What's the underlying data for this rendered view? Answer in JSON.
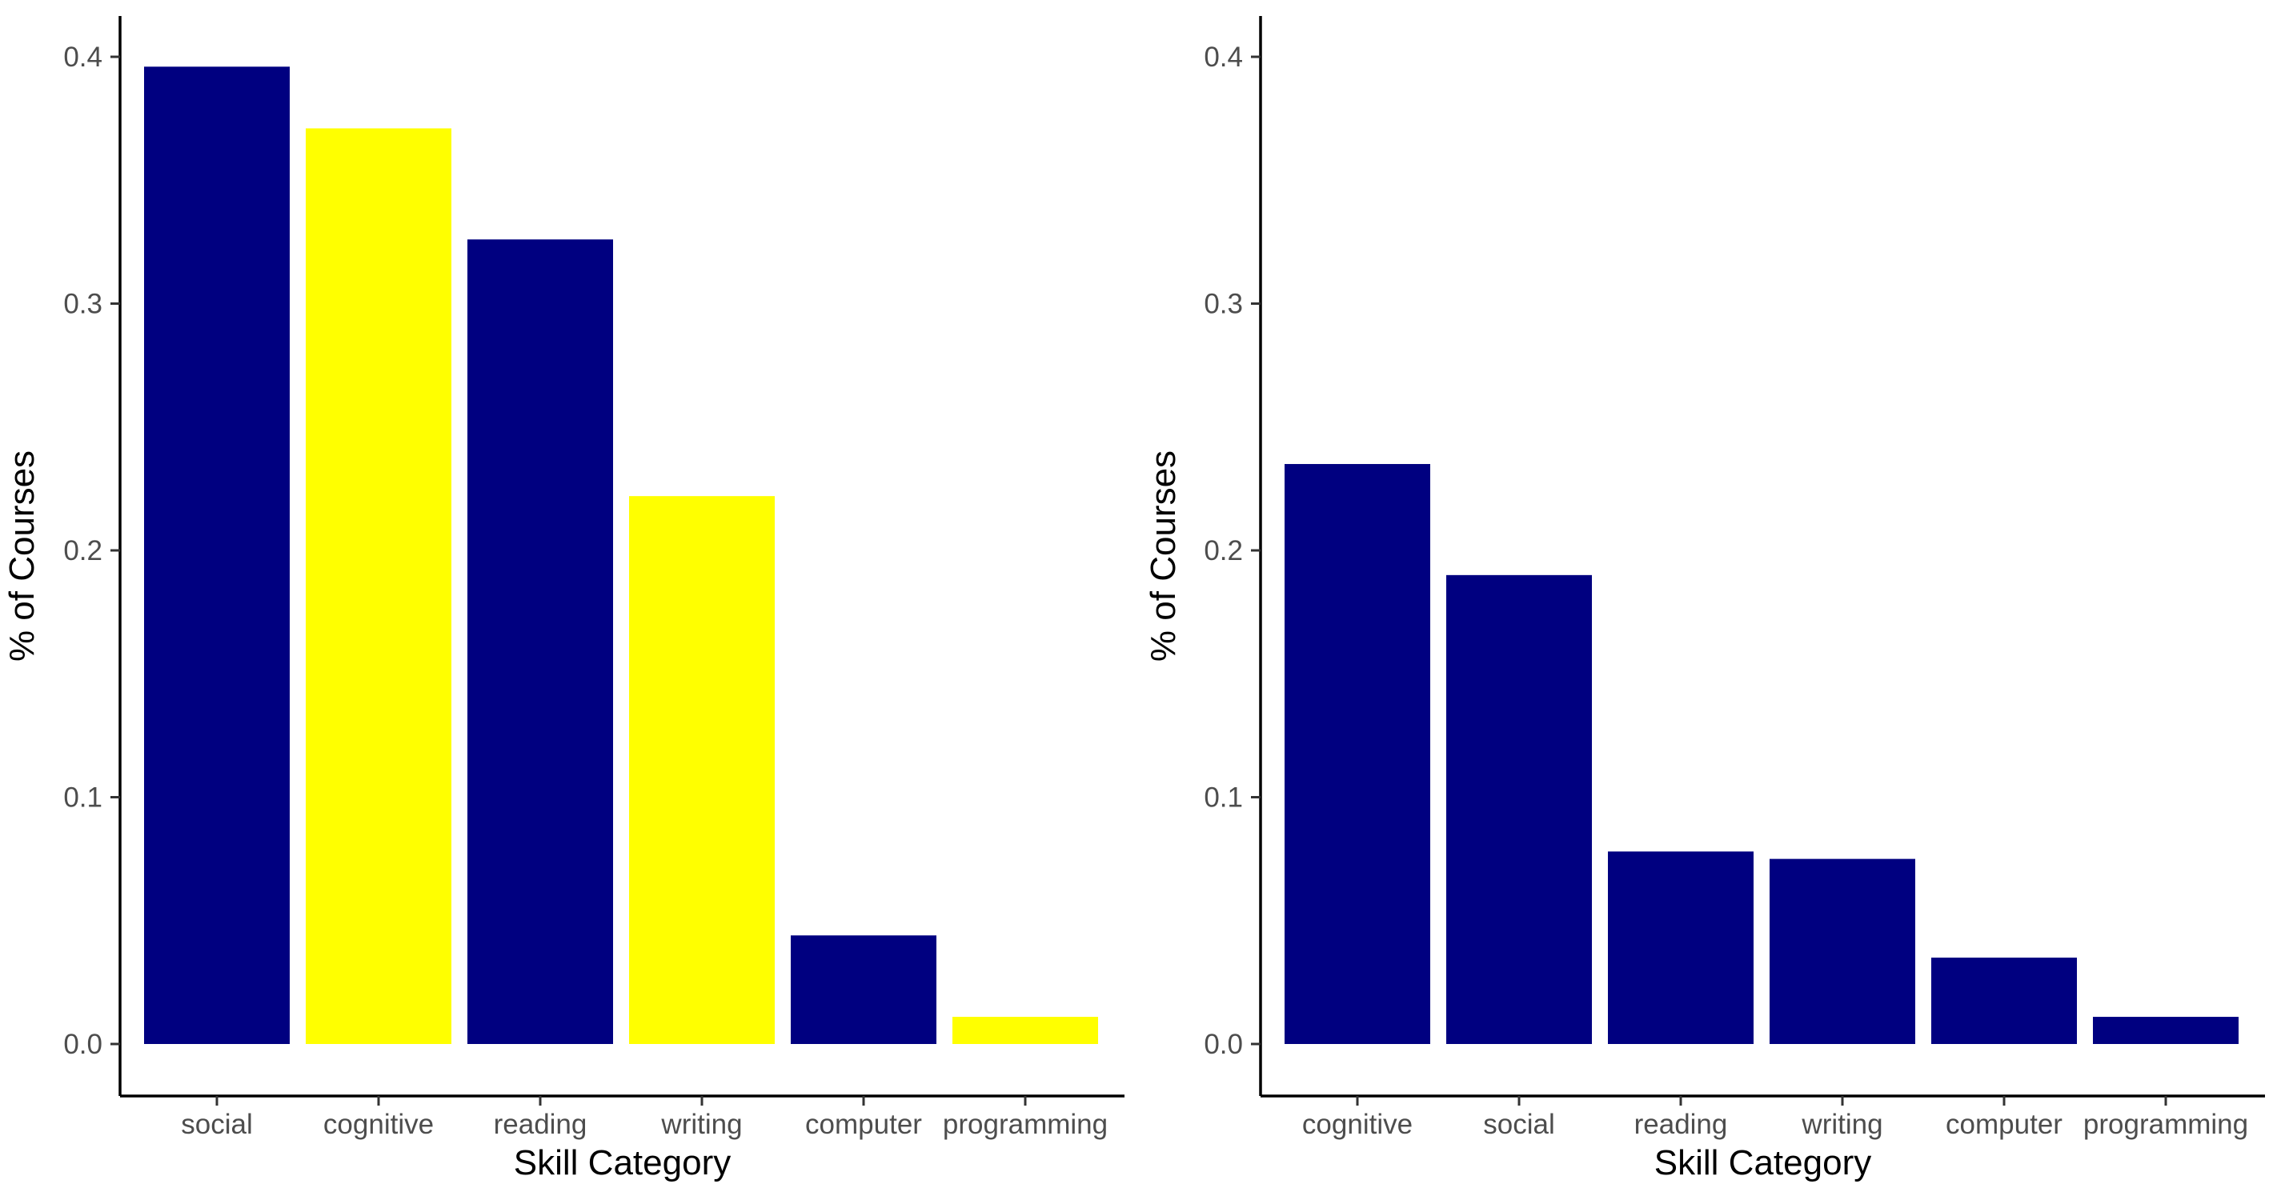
{
  "chart_data": [
    {
      "type": "bar",
      "categories": [
        "social",
        "cognitive",
        "reading",
        "writing",
        "computer",
        "programming"
      ],
      "values": [
        0.396,
        0.371,
        0.326,
        0.222,
        0.044,
        0.011
      ],
      "colors": [
        "#000080",
        "#FFFF00",
        "#000080",
        "#FFFF00",
        "#000080",
        "#FFFF00"
      ],
      "xlabel": "Skill Category",
      "ylabel": "% of Courses",
      "ylim": [
        0,
        0.42
      ],
      "yticks": [
        "0.0",
        "0.1",
        "0.2",
        "0.3",
        "0.4"
      ],
      "yticks_values": [
        0,
        0.1,
        0.2,
        0.3,
        0.4
      ],
      "grid": false
    },
    {
      "type": "bar",
      "categories": [
        "cognitive",
        "social",
        "reading",
        "writing",
        "computer",
        "programming"
      ],
      "values": [
        0.235,
        0.19,
        0.078,
        0.075,
        0.035,
        0.011
      ],
      "colors": [
        "#000080",
        "#000080",
        "#000080",
        "#000080",
        "#000080",
        "#000080"
      ],
      "xlabel": "Skill Category",
      "ylabel": "% of Courses",
      "ylim": [
        0,
        0.42
      ],
      "yticks": [
        "0.0",
        "0.1",
        "0.2",
        "0.3",
        "0.4"
      ],
      "yticks_values": [
        0,
        0.1,
        0.2,
        0.3,
        0.4
      ],
      "grid": false
    }
  ]
}
